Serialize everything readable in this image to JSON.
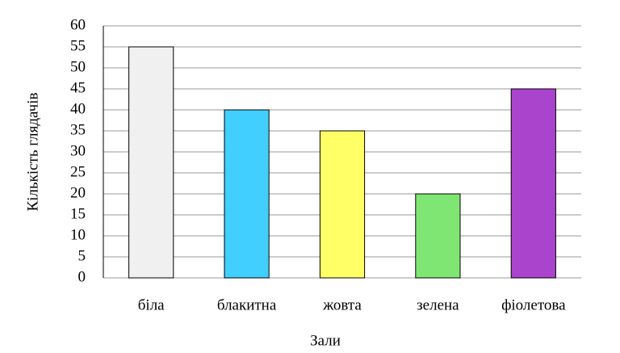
{
  "chart_data": {
    "type": "bar",
    "x_label": "Зали",
    "y_label": "Кількість глядачів",
    "categories": [
      "біла",
      "блакитна",
      "жовта",
      "зелена",
      "фіолетова"
    ],
    "values": [
      55,
      40,
      35,
      20,
      45
    ],
    "colors": [
      "#f0f0f0",
      "#40cfff",
      "#ffff66",
      "#80e673",
      "#aa44cc"
    ],
    "ylim": [
      0,
      60
    ],
    "yticks": [
      0,
      5,
      10,
      15,
      20,
      25,
      30,
      35,
      40,
      45,
      50,
      55,
      60
    ],
    "grid": true
  }
}
